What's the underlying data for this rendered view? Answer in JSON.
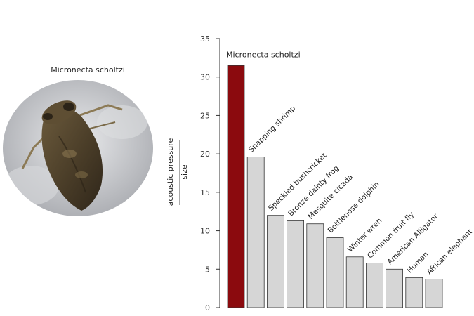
{
  "photo": {
    "caption": "Micronecta scholtzi",
    "subject": "water boatman insect photo"
  },
  "colors": {
    "highlight_bar": "#8b0a0e",
    "other_bars": "#d6d6d6",
    "bar_stroke": "#333333"
  },
  "chart_data": {
    "type": "bar",
    "title": "",
    "ylabel_line1": "acoustic pressure",
    "ylabel_line2": "size",
    "xlabel": "",
    "ylim": [
      0,
      35
    ],
    "yticks": [
      0,
      5,
      10,
      15,
      20,
      25,
      30,
      35
    ],
    "grid": false,
    "categories": [
      "Micronecta scholtzi",
      "Snapping shrimp",
      "Speckled bushcricket",
      "Bronze dainty frog",
      "Mesquite cicada",
      "Bottlenose dolphin",
      "Winter wren",
      "Common fruit fly",
      "American Alligator",
      "Human",
      "African elephant"
    ],
    "values": [
      31.5,
      19.6,
      12.0,
      11.3,
      10.9,
      9.1,
      6.6,
      5.8,
      5.0,
      3.9,
      3.7
    ],
    "highlight_index": 0
  }
}
